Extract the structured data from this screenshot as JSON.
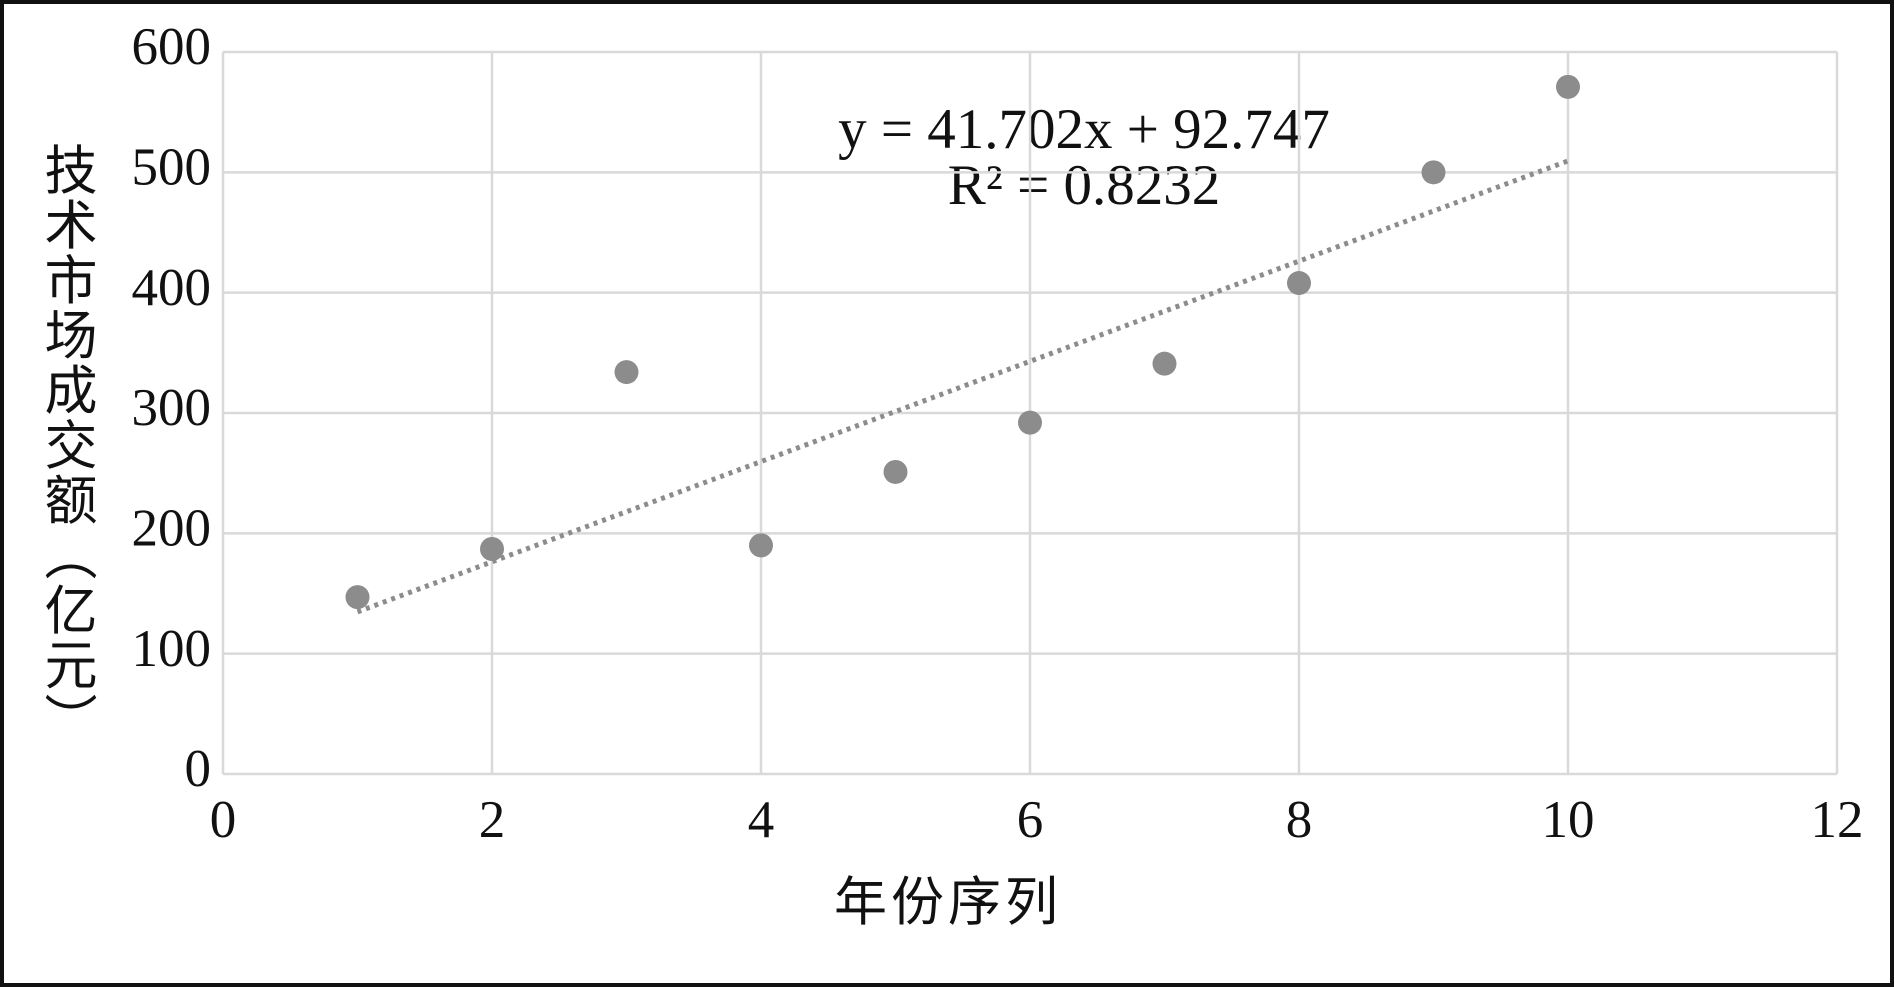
{
  "chart_data": {
    "type": "scatter",
    "x_label": "年份序列",
    "y_label": "技术市场成交额（亿元）",
    "annotations": [
      "y = 41.702x + 92.747",
      "R² = 0.8232"
    ],
    "x": [
      1,
      2,
      3,
      4,
      5,
      6,
      7,
      8,
      9,
      10
    ],
    "series": [
      {
        "color": "#8c8c8c",
        "values": [
          147,
          187,
          334,
          190,
          251,
          292,
          341,
          408,
          500,
          571
        ]
      }
    ],
    "trendline": "linear",
    "xlim": [
      0,
      12
    ],
    "xticks": [
      0,
      2,
      4,
      6,
      8,
      10,
      12
    ],
    "ylim": [
      0,
      600
    ],
    "yticks": [
      0,
      100,
      200,
      300,
      400,
      500,
      600
    ],
    "grid": true
  }
}
